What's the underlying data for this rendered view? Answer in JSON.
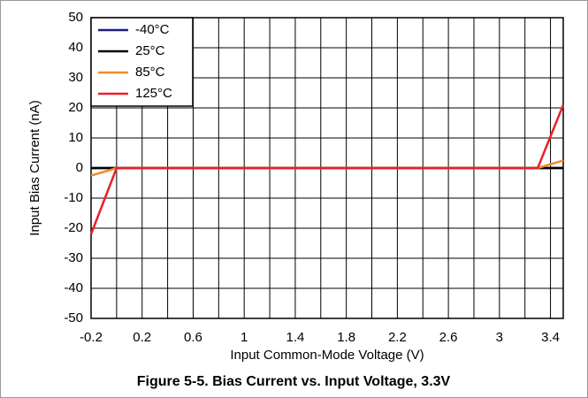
{
  "chart_data": {
    "type": "line",
    "title": "Figure 5-5. Bias Current vs. Input Voltage, 3.3V",
    "xlabel": "Input Common-Mode Voltage (V)",
    "ylabel": "Input Bias Current (nA)",
    "x": [
      -0.2,
      0,
      3.3,
      3.5
    ],
    "series": [
      {
        "name": "-40°C",
        "color": "#1f1f7a",
        "values": [
          0,
          0,
          0,
          0
        ]
      },
      {
        "name": "25°C",
        "color": "#000000",
        "values": [
          0,
          0,
          0,
          0
        ]
      },
      {
        "name": "85°C",
        "color": "#f28c28",
        "values": [
          -2.5,
          0,
          0,
          2.5
        ]
      },
      {
        "name": "125°C",
        "color": "#e8202a",
        "values": [
          -22,
          0,
          0,
          21
        ]
      }
    ],
    "xlim": [
      -0.2,
      3.5
    ],
    "xticks": [
      -0.2,
      0.2,
      0.6,
      1,
      1.4,
      1.8,
      2.2,
      2.6,
      3,
      3.4
    ],
    "xminorticks": [
      0,
      0.4,
      0.8,
      1.2,
      1.6,
      2,
      2.4,
      2.8,
      3.2
    ],
    "ylim": [
      -50,
      50
    ],
    "yticks": [
      -50,
      -40,
      -30,
      -20,
      -10,
      0,
      10,
      20,
      30,
      40,
      50
    ],
    "grid": true,
    "legend": "upper left"
  }
}
